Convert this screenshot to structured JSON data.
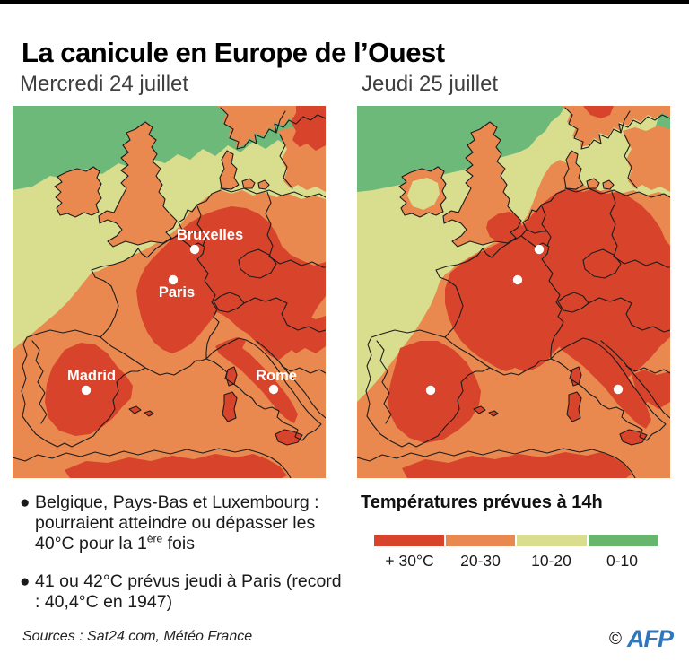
{
  "title": "La canicule en Europe de l’Ouest",
  "maps": {
    "left": {
      "subtitle": "Mercredi 24 juillet",
      "cities": [
        "Bruxelles",
        "Paris",
        "Madrid",
        "Rome"
      ]
    },
    "right": {
      "subtitle": "Jeudi 25 juillet",
      "cities": []
    }
  },
  "notes": [
    {
      "pre": "Belgique, Pays-Bas et Luxembourg : pourraient atteindre ou dépasser les 40°C pour la 1",
      "sup": "ère",
      "post": " fois"
    },
    {
      "pre": "41 ou 42°C prévus jeudi à Paris (record : 40,4°C en 1947)",
      "sup": "",
      "post": ""
    }
  ],
  "legend": {
    "title": "Températures prévues à 14h",
    "items": [
      {
        "label": "+ 30°C",
        "color": "#d7432b"
      },
      {
        "label": "20-30",
        "color": "#e9894f"
      },
      {
        "label": "10-20",
        "color": "#d9dd8e"
      },
      {
        "label": "0-10",
        "color": "#68b66e"
      }
    ]
  },
  "footer": {
    "sources": "Sources : Sat24.com, Météo France",
    "copyright": "©",
    "agency": "AFP"
  },
  "colors": {
    "map_red": "#d7432b",
    "map_orange": "#e9894f",
    "map_yellow_green": "#d9dd8e",
    "map_green": "#6db97a",
    "legend_green": "#68b66e",
    "border_line": "#1c1c1c",
    "city_dot": "#ffffff",
    "city_label": "#ffffff",
    "afp_blue": "#2e77c0",
    "top_bar": "#000000"
  }
}
